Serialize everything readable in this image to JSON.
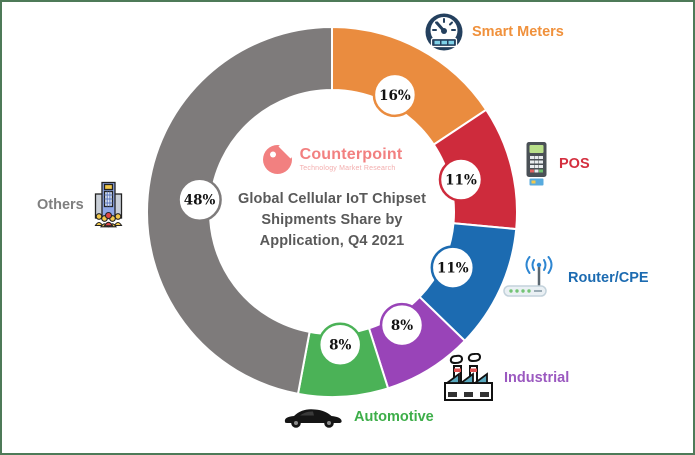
{
  "frame": {
    "border_color": "#4E7A58",
    "background": "#FFFFFF"
  },
  "logo": {
    "name": "Counterpoint",
    "subtitle": "Technology Market Research",
    "color": "#F28080",
    "subtitle_color": "#F3AEAE"
  },
  "center": {
    "title_lines": [
      "Global Cellular IoT Chipset",
      "Shipments Share by",
      "Application, Q4 2021"
    ],
    "title_color": "#595959"
  },
  "chart_data": {
    "type": "pie",
    "subtype": "donut",
    "title": "Global Cellular IoT Chipset Shipments Share by Application, Q4 2021",
    "unit": "%",
    "categories": [
      "Smart Meters",
      "POS",
      "Router/CPE",
      "Industrial",
      "Automotive",
      "Others"
    ],
    "values": [
      16,
      11,
      11,
      8,
      8,
      48
    ],
    "labels": [
      "16%",
      "11%",
      "11%",
      "8%",
      "8%",
      "48%"
    ],
    "colors": [
      "#EA8C3F",
      "#CE2B3C",
      "#1C6BB1",
      "#9944B8",
      "#4BB257",
      "#7E7B7B"
    ],
    "start_angle_deg": 0,
    "clockwise": true,
    "legend_position": "around",
    "icons": [
      "gauge-icon",
      "pos-terminal-icon",
      "router-icon",
      "factory-icon",
      "car-icon",
      "building-icon"
    ]
  },
  "legend": {
    "smart_meters": {
      "label": "Smart Meters",
      "color": "#F0913C"
    },
    "pos": {
      "label": "POS",
      "color": "#D42F3F"
    },
    "router_cpe": {
      "label": "Router/CPE",
      "color": "#1C6BB1"
    },
    "industrial": {
      "label": "Industrial",
      "color": "#9B59C0"
    },
    "automotive": {
      "label": "Automotive",
      "color": "#3DAE49"
    },
    "others": {
      "label": "Others",
      "color": "#7F7F7F"
    }
  }
}
